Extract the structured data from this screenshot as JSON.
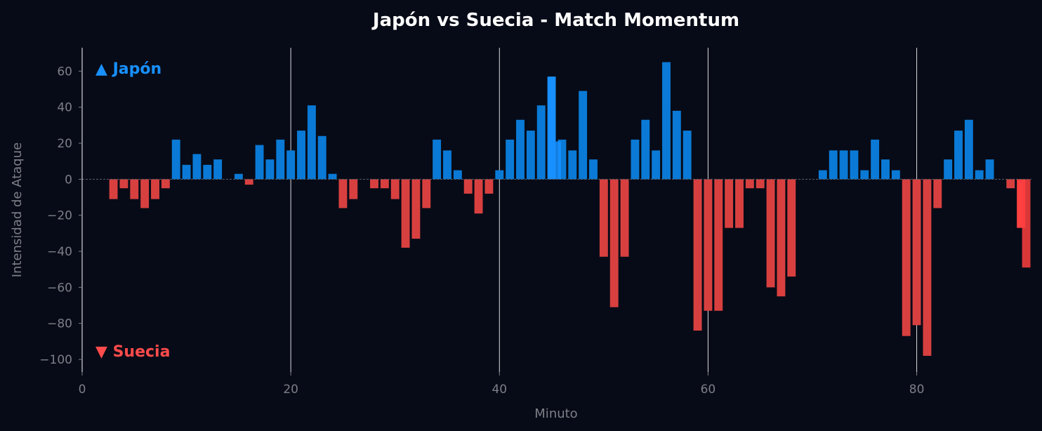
{
  "chart_data": {
    "type": "bar",
    "title": "Japón vs Suecia - Match Momentum",
    "xlabel": "Minuto",
    "ylabel": "Intensidad de Ataque",
    "xlim": [
      0,
      91
    ],
    "ylim": [
      -107,
      73
    ],
    "xticks": [
      0,
      20,
      40,
      60,
      80
    ],
    "yticks": [
      60,
      40,
      20,
      0,
      -20,
      -40,
      -60,
      -80,
      -100
    ],
    "ytick_labels": [
      "60",
      "40",
      "20",
      "0",
      "−20",
      "−40",
      "−60",
      "−80",
      "−100"
    ],
    "vertical_lines": [
      20,
      40,
      60,
      80
    ],
    "zero_line": true,
    "grid": false,
    "colors": {
      "positive": "#0a7ad6",
      "negative": "#d84040",
      "highlight_positive": "#1890ff",
      "highlight_negative": "#ff4040",
      "background": "#070b17",
      "text": "#7d7f87",
      "title": "#ffffff",
      "vline": "#ffffff",
      "zero_line": "#5c606a"
    },
    "annotations": [
      {
        "text": "▲ Japón",
        "color": "#1890ff",
        "anchor": "top-left"
      },
      {
        "text": "▼ Suecia",
        "color": "#ff4b4b",
        "anchor": "bottom-left"
      }
    ],
    "highlights": [
      45,
      90
    ],
    "minutes": [
      1,
      2,
      3,
      4,
      5,
      6,
      7,
      8,
      9,
      10,
      11,
      12,
      13,
      14,
      15,
      16,
      17,
      18,
      19,
      20,
      21,
      22,
      23,
      24,
      25,
      26,
      27,
      28,
      29,
      30,
      31,
      32,
      33,
      34,
      35,
      36,
      37,
      38,
      39,
      40,
      41,
      42,
      43,
      44,
      45,
      46,
      47,
      48,
      49,
      50,
      51,
      52,
      53,
      54,
      55,
      56,
      57,
      58,
      59,
      60,
      61,
      62,
      63,
      64,
      65,
      66,
      67,
      68,
      69,
      70,
      71,
      72,
      73,
      74,
      75,
      76,
      77,
      78,
      79,
      80,
      81,
      82,
      83,
      84,
      85,
      86,
      87,
      88,
      89,
      90
    ],
    "values": [
      0,
      0,
      -11,
      -5,
      -11,
      -16,
      -11,
      -5,
      22,
      8,
      14,
      8,
      11,
      0,
      3,
      -3,
      19,
      11,
      22,
      16,
      27,
      41,
      24,
      3,
      -16,
      -11,
      0,
      -5,
      -5,
      -11,
      -38,
      -33,
      -16,
      22,
      16,
      5,
      -8,
      -19,
      -8,
      5,
      22,
      33,
      27,
      41,
      57,
      22,
      16,
      49,
      11,
      -43,
      -71,
      -43,
      22,
      33,
      16,
      65,
      38,
      27,
      -84,
      -73,
      -73,
      -27,
      -27,
      -5,
      -5,
      -60,
      -65,
      -54,
      0,
      0,
      5,
      16,
      16,
      16,
      5,
      22,
      11,
      5,
      -87,
      -81,
      -98,
      -16,
      11,
      27,
      33,
      5,
      11,
      0,
      -5,
      -27
    ],
    "overlay_bars": [
      {
        "minute": 45.5,
        "value": 21
      },
      {
        "minute": 90.5,
        "value": -49
      }
    ]
  }
}
